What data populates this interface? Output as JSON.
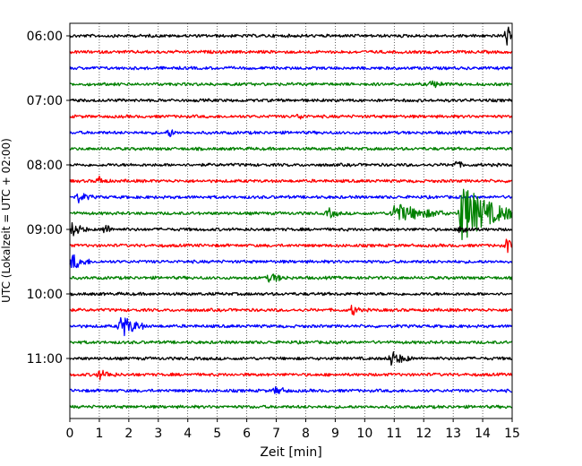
{
  "chart_data": {
    "type": "line",
    "title": "",
    "xlabel": "Zeit  [min]",
    "ylabel": "UTC (Lokalzeit = UTC + 02:00)",
    "xlim": [
      0,
      15
    ],
    "x_ticks": [
      0,
      1,
      2,
      3,
      4,
      5,
      6,
      7,
      8,
      9,
      10,
      11,
      12,
      13,
      14,
      15
    ],
    "y_tick_labels": [
      "06:00",
      "07:00",
      "08:00",
      "09:00",
      "10:00",
      "11:00"
    ],
    "grid": "vertical dotted",
    "trace_interval_min": 15,
    "start_time_utc": "06:00",
    "trace_colors": [
      "#000000",
      "#ff0000",
      "#0000ff",
      "#008000"
    ],
    "traces": [
      {
        "start": "06:00",
        "color": "#000000",
        "events": [
          {
            "t": 14.85,
            "amp": 1.4,
            "dur": 0.1
          }
        ]
      },
      {
        "start": "06:15",
        "color": "#ff0000",
        "events": []
      },
      {
        "start": "06:30",
        "color": "#0000ff",
        "events": []
      },
      {
        "start": "06:45",
        "color": "#008000",
        "events": [
          {
            "t": 12.3,
            "amp": 0.4,
            "dur": 0.5
          }
        ]
      },
      {
        "start": "07:00",
        "color": "#000000",
        "events": []
      },
      {
        "start": "07:15",
        "color": "#ff0000",
        "events": [
          {
            "t": 7.8,
            "amp": 0.35,
            "dur": 0.2
          }
        ]
      },
      {
        "start": "07:30",
        "color": "#0000ff",
        "events": [
          {
            "t": 3.4,
            "amp": 0.45,
            "dur": 0.2
          }
        ]
      },
      {
        "start": "07:45",
        "color": "#008000",
        "events": []
      },
      {
        "start": "08:00",
        "color": "#000000",
        "events": [
          {
            "t": 13.1,
            "amp": 0.4,
            "dur": 0.3
          }
        ]
      },
      {
        "start": "08:15",
        "color": "#ff0000",
        "events": [
          {
            "t": 1.0,
            "amp": 0.45,
            "dur": 0.3
          }
        ]
      },
      {
        "start": "08:30",
        "color": "#0000ff",
        "events": [
          {
            "t": 0.3,
            "amp": 0.5,
            "dur": 0.5
          }
        ]
      },
      {
        "start": "08:45",
        "color": "#008000",
        "events": [
          {
            "t": 8.8,
            "amp": 0.5,
            "dur": 0.4
          },
          {
            "t": 11.0,
            "amp": 1.1,
            "dur": 1.8
          },
          {
            "t": 13.3,
            "amp": 3.5,
            "dur": 1.7
          }
        ]
      },
      {
        "start": "09:00",
        "color": "#000000",
        "events": [
          {
            "t": 0.1,
            "amp": 0.8,
            "dur": 0.5
          },
          {
            "t": 1.2,
            "amp": 0.6,
            "dur": 0.3
          },
          {
            "t": 13.3,
            "amp": 0.6,
            "dur": 0.4
          }
        ]
      },
      {
        "start": "09:15",
        "color": "#ff0000",
        "events": [
          {
            "t": 14.85,
            "amp": 0.9,
            "dur": 0.15
          }
        ]
      },
      {
        "start": "09:30",
        "color": "#0000ff",
        "events": [
          {
            "t": 0.1,
            "amp": 0.9,
            "dur": 0.6
          }
        ]
      },
      {
        "start": "09:45",
        "color": "#008000",
        "events": [
          {
            "t": 6.8,
            "amp": 0.5,
            "dur": 0.6
          }
        ]
      },
      {
        "start": "10:00",
        "color": "#000000",
        "events": []
      },
      {
        "start": "10:15",
        "color": "#ff0000",
        "events": [
          {
            "t": 9.6,
            "amp": 0.6,
            "dur": 0.3
          }
        ]
      },
      {
        "start": "10:30",
        "color": "#0000ff",
        "events": [
          {
            "t": 1.75,
            "amp": 1.3,
            "dur": 0.8
          }
        ]
      },
      {
        "start": "10:45",
        "color": "#008000",
        "events": []
      },
      {
        "start": "11:00",
        "color": "#000000",
        "events": [
          {
            "t": 10.9,
            "amp": 0.8,
            "dur": 0.7
          }
        ]
      },
      {
        "start": "11:15",
        "color": "#ff0000",
        "events": [
          {
            "t": 1.0,
            "amp": 0.5,
            "dur": 0.6
          }
        ]
      },
      {
        "start": "11:30",
        "color": "#0000ff",
        "events": [
          {
            "t": 7.0,
            "amp": 0.4,
            "dur": 0.5
          }
        ]
      },
      {
        "start": "11:45",
        "color": "#008000",
        "events": []
      }
    ]
  }
}
